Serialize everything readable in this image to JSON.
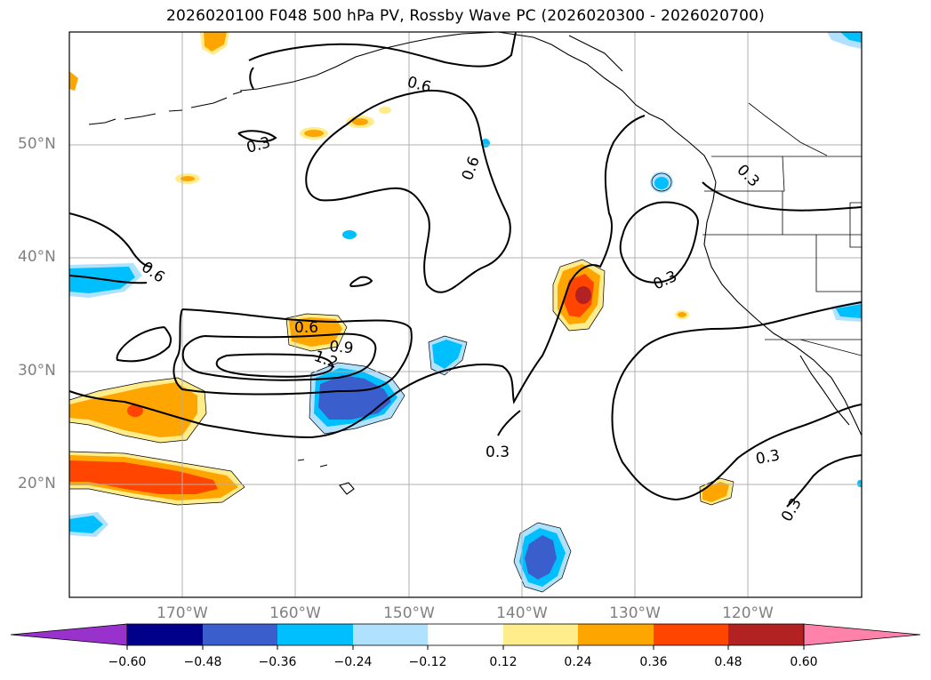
{
  "title": "2026020100 F048 500 hPa PV, Rossby Wave PC (2026020300 - 2026020700)",
  "lat_labels": [
    "50°N",
    "40°N",
    "30°N",
    "20°N"
  ],
  "lon_labels": [
    "170°W",
    "160°W",
    "150°W",
    "140°W",
    "130°W",
    "120°W"
  ],
  "contour_labels": [
    "0.3",
    "0.6",
    "0.6",
    "0.6",
    "0.6",
    "0.9",
    "1.2",
    "0.3",
    "0.3",
    "0.3",
    "0.3",
    "0.3"
  ],
  "colorbar": {
    "ticks": [
      "−0.60",
      "−0.48",
      "−0.36",
      "−0.24",
      "−0.12",
      "0.12",
      "0.24",
      "0.36",
      "0.48",
      "0.60"
    ],
    "colors": [
      "#9932cc",
      "#00008b",
      "#3a5fcd",
      "#00bfff",
      "#b0e2ff",
      "#ffffff",
      "#ffec8b",
      "#ffa500",
      "#ff4500",
      "#b22222",
      "#ff82ab"
    ]
  },
  "fill_colors": {
    "neg_light": "#b0e2ff",
    "neg_mid": "#00bfff",
    "neg_dark": "#3a5fcd",
    "pos_light": "#ffec8b",
    "pos_mid": "#ffa500",
    "pos_dark": "#ff4500",
    "pos_darker": "#b22222"
  }
}
